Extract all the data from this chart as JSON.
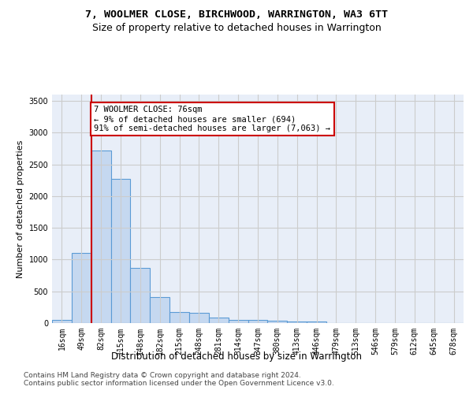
{
  "title": "7, WOOLMER CLOSE, BIRCHWOOD, WARRINGTON, WA3 6TT",
  "subtitle": "Size of property relative to detached houses in Warrington",
  "xlabel": "Distribution of detached houses by size in Warrington",
  "ylabel": "Number of detached properties",
  "bar_labels": [
    "16sqm",
    "49sqm",
    "82sqm",
    "115sqm",
    "148sqm",
    "182sqm",
    "215sqm",
    "248sqm",
    "281sqm",
    "314sqm",
    "347sqm",
    "380sqm",
    "413sqm",
    "446sqm",
    "479sqm",
    "513sqm",
    "546sqm",
    "579sqm",
    "612sqm",
    "645sqm",
    "678sqm"
  ],
  "bar_values": [
    55,
    1100,
    2720,
    2270,
    875,
    415,
    170,
    165,
    85,
    55,
    45,
    40,
    25,
    22,
    0,
    0,
    0,
    0,
    0,
    0,
    0
  ],
  "bar_color": "#c5d8f0",
  "bar_edge_color": "#5b9bd5",
  "property_line_x": 1.5,
  "annotation_text": "7 WOOLMER CLOSE: 76sqm\n← 9% of detached houses are smaller (694)\n91% of semi-detached houses are larger (7,063) →",
  "annotation_box_color": "#ffffff",
  "annotation_box_edge_color": "#cc0000",
  "vline_color": "#cc0000",
  "ylim": [
    0,
    3600
  ],
  "yticks": [
    0,
    500,
    1000,
    1500,
    2000,
    2500,
    3000,
    3500
  ],
  "grid_color": "#cccccc",
  "bg_color": "#e8eef8",
  "footer_line1": "Contains HM Land Registry data © Crown copyright and database right 2024.",
  "footer_line2": "Contains public sector information licensed under the Open Government Licence v3.0.",
  "title_fontsize": 9.5,
  "subtitle_fontsize": 9,
  "xlabel_fontsize": 8.5,
  "ylabel_fontsize": 8,
  "tick_fontsize": 7,
  "footer_fontsize": 6.5,
  "annotation_fontsize": 7.5
}
